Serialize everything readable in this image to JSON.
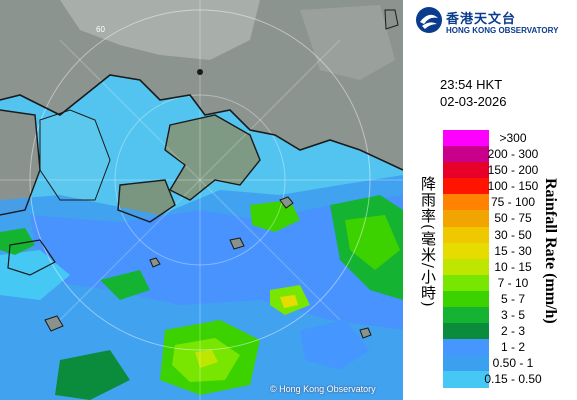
{
  "header": {
    "org_name_zh": "香港天文台",
    "org_name_en": "HONG KONG OBSERVATORY"
  },
  "timestamp": {
    "time": "23:54 HKT",
    "date": "02-03-2026"
  },
  "map": {
    "copyright": "© Hong Kong Observatory",
    "range_ring_label": "60"
  },
  "legend": {
    "title_zh": "降雨率(毫米/小時)",
    "title_en": "Rainfall Rate (mm/h)",
    "items": [
      {
        "label": ">300",
        "color": "#ff00ff"
      },
      {
        "label": "200 - 300",
        "color": "#c8008c"
      },
      {
        "label": "150 - 200",
        "color": "#e6002a"
      },
      {
        "label": "100 - 150",
        "color": "#ff1400"
      },
      {
        "label": "75 - 100",
        "color": "#ff8200"
      },
      {
        "label": "50 - 75",
        "color": "#f2a500"
      },
      {
        "label": "30 - 50",
        "color": "#f0c800"
      },
      {
        "label": "15 - 30",
        "color": "#e6dc00"
      },
      {
        "label": "10 - 15",
        "color": "#bee600"
      },
      {
        "label": "7 - 10",
        "color": "#78e600"
      },
      {
        "label": "5 - 7",
        "color": "#3cd200"
      },
      {
        "label": "3 - 5",
        "color": "#14b432"
      },
      {
        "label": "2 - 3",
        "color": "#0a8c3c"
      },
      {
        "label": "1 - 2",
        "color": "#4696ff"
      },
      {
        "label": "0.50 - 1",
        "color": "#3ca0f0"
      },
      {
        "label": "0.15 - 0.50",
        "color": "#46c8f5"
      }
    ]
  }
}
